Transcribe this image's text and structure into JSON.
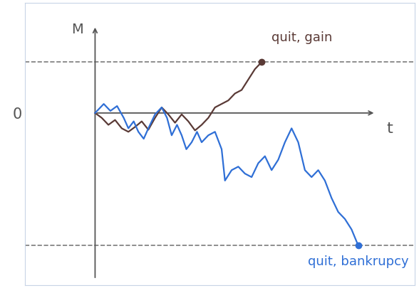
{
  "chart_data": {
    "type": "line",
    "x_label": "t",
    "y_label": "M",
    "xlim": [
      -10.5,
      48
    ],
    "ylim": [
      -24.7,
      15.8
    ],
    "xticks": [],
    "yticks": [
      0
    ],
    "tick_labels": "y",
    "grid": false,
    "line_style": "dashed",
    "thresholds": [
      7.3,
      -19
    ],
    "series": [
      {
        "color": "#5a3a36",
        "marker": "o",
        "annotation": "quit, gain",
        "x": [
          0,
          1,
          2,
          3,
          4,
          5,
          6,
          7,
          8,
          9,
          10,
          11,
          12,
          13,
          14,
          15,
          16,
          17,
          18,
          19,
          20,
          21,
          22,
          23,
          24,
          25
        ],
        "values": [
          0,
          -0.7,
          -1.7,
          -1,
          -2.2,
          -2.7,
          -2,
          -1.2,
          -2.4,
          -0.7,
          0.8,
          -0.2,
          -1.4,
          -0.2,
          -1.2,
          -2.5,
          -1.7,
          -0.7,
          0.8,
          1.3,
          1.8,
          2.8,
          3.3,
          4.8,
          6.3,
          7.3
        ]
      },
      {
        "color": "#2f6fd6",
        "marker": "o",
        "annotation": "quit, bankrupcy",
        "x": [
          0,
          1.3,
          2.3,
          3.3,
          4.3,
          5,
          5.8,
          6.5,
          7.3,
          8,
          9,
          10,
          10.8,
          11.5,
          12.3,
          13,
          13.7,
          14.5,
          15.3,
          16,
          17,
          18,
          19,
          19.5,
          20.5,
          21.5,
          22.5,
          23.5,
          24.5,
          25.5,
          26.5,
          27.5,
          28.5,
          29.5,
          30.5,
          31.5,
          32.5,
          33.5,
          34.5,
          35.5,
          36.5,
          37.5,
          38.5,
          39.5
        ],
        "values": [
          0,
          1.3,
          0.3,
          1,
          -0.7,
          -2.2,
          -1.2,
          -2.7,
          -3.7,
          -2.2,
          -0.2,
          0.8,
          -0.7,
          -3.2,
          -1.7,
          -3.2,
          -5.2,
          -4.2,
          -2.7,
          -4.2,
          -3.2,
          -2.7,
          -5.2,
          -9.7,
          -8.2,
          -7.7,
          -8.7,
          -9.2,
          -7.2,
          -6.2,
          -8.2,
          -6.7,
          -4.2,
          -2.2,
          -4.2,
          -8.2,
          -9.2,
          -8.2,
          -9.7,
          -12.2,
          -14.2,
          -15.2,
          -16.7,
          -19
        ]
      }
    ]
  }
}
